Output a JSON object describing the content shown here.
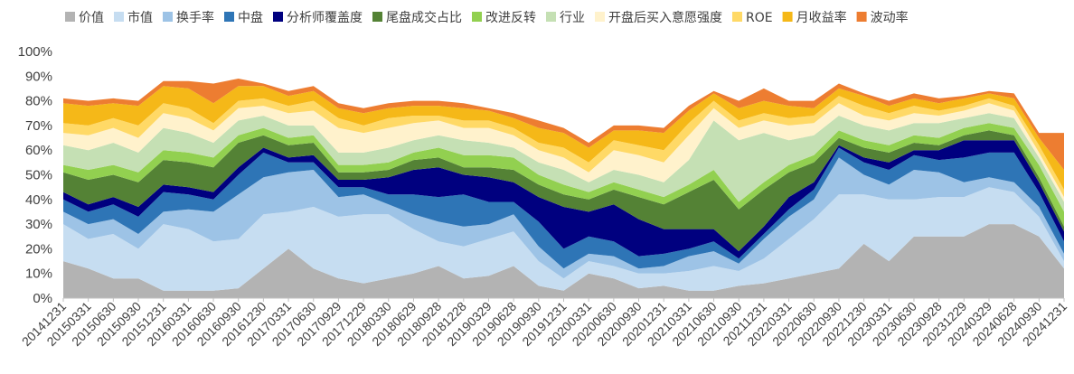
{
  "chart_data": {
    "type": "area",
    "stacked": true,
    "title": "",
    "xlabel": "",
    "ylabel": "",
    "ylim": [
      0,
      100
    ],
    "y_ticks": [
      "0%",
      "10%",
      "20%",
      "30%",
      "40%",
      "50%",
      "60%",
      "70%",
      "80%",
      "90%",
      "100%"
    ],
    "legend_position": "top",
    "grid": false,
    "x": [
      "20141231",
      "20150331",
      "20150630",
      "20150930",
      "20151231",
      "20160331",
      "20160630",
      "20160930",
      "20161230",
      "20170331",
      "20170630",
      "20170929",
      "20171229",
      "20180330",
      "20180629",
      "20180928",
      "20181228",
      "20190329",
      "20190628",
      "20190930",
      "20191231",
      "20200331",
      "20200630",
      "20200930",
      "20201231",
      "20210331",
      "20210630",
      "20210930",
      "20211231",
      "20220331",
      "20220630",
      "20220930",
      "20221230",
      "20230331",
      "20230630",
      "20230928",
      "20231229",
      "20240329",
      "20240628",
      "20240930",
      "20241231"
    ],
    "series": [
      {
        "name": "价值",
        "color": "#b3b3b3",
        "values": [
          15,
          12,
          8,
          8,
          3,
          3,
          3,
          4,
          12,
          20,
          12,
          8,
          6,
          8,
          10,
          13,
          8,
          9,
          13,
          5,
          3,
          10,
          8,
          4,
          5,
          3,
          3,
          5,
          6,
          8,
          10,
          12,
          22,
          15,
          25,
          25,
          25,
          30,
          30,
          25,
          12
        ]
      },
      {
        "name": "市值",
        "color": "#c6ddf1",
        "values": [
          15,
          12,
          18,
          12,
          27,
          25,
          20,
          20,
          22,
          15,
          25,
          25,
          28,
          26,
          18,
          10,
          13,
          15,
          14,
          10,
          5,
          5,
          5,
          6,
          5,
          8,
          10,
          6,
          10,
          16,
          22,
          30,
          20,
          25,
          15,
          16,
          16,
          15,
          13,
          8,
          3
        ]
      },
      {
        "name": "换手率",
        "color": "#9dc3e6",
        "values": [
          5,
          6,
          6,
          6,
          5,
          8,
          12,
          18,
          15,
          16,
          15,
          8,
          8,
          4,
          6,
          8,
          8,
          6,
          7,
          6,
          4,
          3,
          4,
          2,
          3,
          6,
          6,
          3,
          8,
          9,
          8,
          15,
          8,
          6,
          12,
          10,
          6,
          4,
          4,
          4,
          3
        ]
      },
      {
        "name": "中盘",
        "color": "#2e75b6",
        "values": [
          5,
          5,
          6,
          7,
          8,
          6,
          5,
          8,
          10,
          4,
          3,
          4,
          3,
          4,
          8,
          10,
          13,
          9,
          5,
          10,
          8,
          7,
          6,
          5,
          5,
          3,
          4,
          2,
          2,
          3,
          4,
          4,
          5,
          6,
          6,
          5,
          10,
          10,
          12,
          6,
          5
        ]
      },
      {
        "name": "分析师覆盖度",
        "color": "#00007f",
        "values": [
          3,
          3,
          3,
          4,
          3,
          3,
          3,
          3,
          2,
          2,
          3,
          3,
          3,
          7,
          10,
          12,
          8,
          10,
          8,
          10,
          17,
          10,
          15,
          15,
          10,
          8,
          5,
          3,
          3,
          5,
          3,
          1,
          2,
          3,
          2,
          4,
          7,
          5,
          5,
          4,
          4
        ]
      },
      {
        "name": "尾盘成交占比",
        "color": "#548235",
        "values": [
          8,
          10,
          9,
          10,
          10,
          10,
          10,
          10,
          5,
          5,
          5,
          3,
          3,
          3,
          4,
          4,
          3,
          4,
          5,
          5,
          5,
          5,
          6,
          9,
          10,
          15,
          20,
          17,
          15,
          10,
          8,
          3,
          4,
          4,
          3,
          2,
          2,
          4,
          2,
          2,
          2
        ]
      },
      {
        "name": "改进反转",
        "color": "#92d050",
        "values": [
          3,
          4,
          4,
          4,
          4,
          4,
          4,
          3,
          3,
          3,
          3,
          3,
          3,
          3,
          3,
          4,
          5,
          5,
          5,
          4,
          4,
          3,
          3,
          3,
          3,
          3,
          4,
          3,
          3,
          3,
          3,
          3,
          3,
          3,
          3,
          3,
          3,
          3,
          3,
          5,
          6
        ]
      },
      {
        "name": "行业",
        "color": "#c5e0b4",
        "values": [
          8,
          8,
          9,
          8,
          9,
          8,
          6,
          6,
          5,
          5,
          4,
          5,
          5,
          6,
          5,
          5,
          6,
          5,
          4,
          5,
          6,
          4,
          5,
          6,
          6,
          10,
          20,
          25,
          20,
          10,
          8,
          6,
          6,
          6,
          5,
          6,
          4,
          4,
          4,
          3,
          4
        ]
      },
      {
        "name": "开盘后买入意愿强度",
        "color": "#fff2cc",
        "values": [
          5,
          6,
          6,
          6,
          6,
          6,
          5,
          5,
          4,
          5,
          6,
          10,
          8,
          8,
          7,
          6,
          5,
          6,
          5,
          5,
          5,
          4,
          8,
          8,
          8,
          10,
          5,
          5,
          5,
          6,
          5,
          5,
          4,
          4,
          4,
          3,
          3,
          4,
          3,
          2,
          2
        ]
      },
      {
        "name": "ROE",
        "color": "#ffd966",
        "values": [
          4,
          4,
          4,
          5,
          4,
          4,
          3,
          3,
          3,
          3,
          4,
          4,
          3,
          4,
          3,
          2,
          3,
          3,
          3,
          3,
          4,
          4,
          4,
          4,
          5,
          5,
          3,
          3,
          3,
          3,
          3,
          3,
          4,
          3,
          3,
          2,
          2,
          2,
          2,
          3,
          3
        ]
      },
      {
        "name": "月收益率",
        "color": "#f5b818",
        "values": [
          8,
          8,
          6,
          8,
          7,
          8,
          8,
          6,
          5,
          4,
          4,
          4,
          5,
          4,
          4,
          4,
          5,
          4,
          4,
          6,
          6,
          6,
          4,
          6,
          7,
          5,
          3,
          5,
          5,
          5,
          3,
          3,
          4,
          3,
          3,
          3,
          3,
          2,
          3,
          3,
          8
        ]
      },
      {
        "name": "波动率",
        "color": "#ed7d31",
        "values": [
          2,
          2,
          2,
          2,
          2,
          3,
          8,
          3,
          1,
          2,
          2,
          2,
          2,
          2,
          2,
          2,
          2,
          1,
          2,
          3,
          2,
          2,
          2,
          2,
          2,
          2,
          1,
          3,
          5,
          2,
          3,
          2,
          1,
          2,
          2,
          2,
          1,
          1,
          2,
          2,
          15
        ]
      }
    ]
  }
}
